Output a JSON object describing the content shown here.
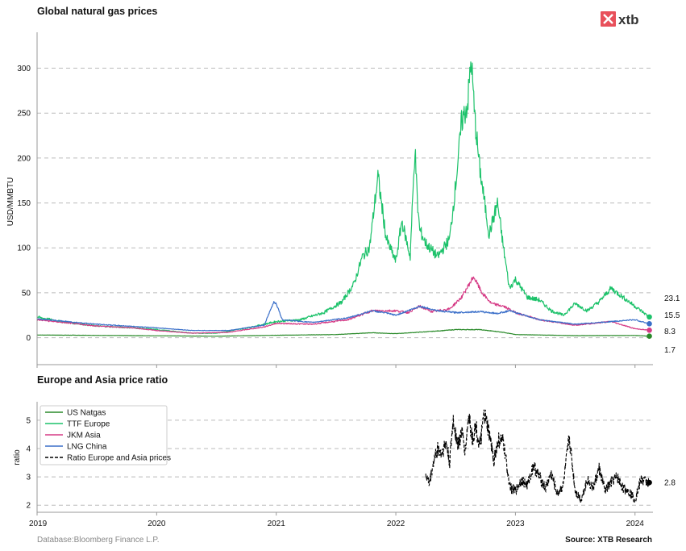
{
  "logo": {
    "text": "xtb",
    "color": "#e8505b"
  },
  "footer": {
    "left": "Database:Bloomberg Finance L.P.",
    "right": "Source: XTB Research"
  },
  "colors": {
    "us": "#2a8a2a",
    "ttf": "#1cc26a",
    "jkm": "#d63b86",
    "lng": "#3a6fc9",
    "ratio": "#000000"
  },
  "chart_data": [
    {
      "type": "line",
      "title": "Global natural gas prices",
      "ylabel": "USD/MMBTU",
      "ylim": [
        -30,
        340
      ],
      "yticks": [
        0,
        50,
        100,
        150,
        200,
        250,
        300
      ],
      "xlim": [
        2019.0,
        2024.15
      ],
      "grid": true,
      "end_labels": [
        "23.1",
        "15.5",
        "8.3",
        "1.7"
      ],
      "series": [
        {
          "key": "us",
          "x": [
            2019.0,
            2019.5,
            2020.0,
            2020.5,
            2021.0,
            2021.5,
            2021.8,
            2022.0,
            2022.3,
            2022.5,
            2022.7,
            2022.9,
            2023.0,
            2023.5,
            2024.0,
            2024.12
          ],
          "y": [
            3,
            2.6,
            2.1,
            1.7,
            2.7,
            3.5,
            5.5,
            4.5,
            7,
            9,
            9,
            6,
            3.5,
            2.3,
            2.5,
            1.7
          ]
        },
        {
          "key": "ttf",
          "x": [
            2019.0,
            2019.2,
            2019.5,
            2019.8,
            2020.0,
            2020.3,
            2020.5,
            2020.8,
            2021.0,
            2021.2,
            2021.4,
            2021.55,
            2021.65,
            2021.72,
            2021.78,
            2021.85,
            2021.92,
            2022.0,
            2022.05,
            2022.12,
            2022.16,
            2022.18,
            2022.2,
            2022.25,
            2022.35,
            2022.45,
            2022.5,
            2022.55,
            2022.6,
            2022.63,
            2022.66,
            2022.7,
            2022.78,
            2022.85,
            2022.9,
            2022.95,
            2023.0,
            2023.1,
            2023.2,
            2023.3,
            2023.4,
            2023.5,
            2023.6,
            2023.7,
            2023.8,
            2023.9,
            2024.0,
            2024.12
          ],
          "y": [
            23,
            18,
            13,
            11,
            9,
            5,
            5,
            12,
            18,
            20,
            28,
            40,
            60,
            90,
            100,
            180,
            110,
            85,
            130,
            90,
            212,
            150,
            120,
            105,
            90,
            110,
            170,
            240,
            260,
            310,
            245,
            190,
            115,
            150,
            100,
            55,
            65,
            45,
            42,
            30,
            25,
            38,
            30,
            40,
            55,
            45,
            35,
            23.1
          ]
        },
        {
          "key": "jkm",
          "x": [
            2019.0,
            2019.5,
            2019.8,
            2020.0,
            2020.3,
            2020.6,
            2020.9,
            2021.0,
            2021.3,
            2021.6,
            2021.8,
            2022.0,
            2022.1,
            2022.2,
            2022.3,
            2022.45,
            2022.55,
            2022.65,
            2022.72,
            2022.8,
            2022.9,
            2023.0,
            2023.2,
            2023.5,
            2023.8,
            2024.0,
            2024.12
          ],
          "y": [
            20,
            13,
            11,
            8,
            5,
            6,
            12,
            16,
            15,
            20,
            30,
            30,
            28,
            35,
            29,
            32,
            45,
            68,
            50,
            38,
            35,
            28,
            20,
            14,
            18,
            10,
            8.3
          ]
        },
        {
          "key": "lng",
          "x": [
            2019.0,
            2019.5,
            2020.0,
            2020.3,
            2020.6,
            2020.9,
            2020.98,
            2021.0,
            2021.05,
            2021.3,
            2021.6,
            2021.8,
            2021.9,
            2022.0,
            2022.1,
            2022.2,
            2022.35,
            2022.5,
            2022.7,
            2022.85,
            2022.95,
            2023.0,
            2023.2,
            2023.5,
            2023.8,
            2024.0,
            2024.12
          ],
          "y": [
            21,
            15,
            11,
            8,
            8,
            14,
            40,
            38,
            20,
            17,
            22,
            30,
            28,
            25,
            30,
            35,
            30,
            28,
            29,
            27,
            30,
            28,
            20,
            15,
            18,
            20,
            15.5
          ]
        }
      ]
    },
    {
      "type": "line",
      "title": "Europe and Asia price ratio",
      "ylabel": "ratio",
      "ylim": [
        1.75,
        5.65
      ],
      "yticks": [
        2,
        3,
        4,
        5
      ],
      "xlim": [
        2019.0,
        2024.15
      ],
      "xticks": [
        "2019",
        "2020",
        "2021",
        "2022",
        "2023",
        "2024"
      ],
      "grid": true,
      "end_label": "2.8",
      "legend": {
        "placement": "top-left",
        "entries": [
          "US Natgas",
          "TTF Europe",
          "JKM Asia",
          "LNG China",
          "Ratio Europe and Asia prices"
        ]
      },
      "series": [
        {
          "key": "ratio",
          "x": [
            2022.25,
            2022.28,
            2022.32,
            2022.35,
            2022.38,
            2022.42,
            2022.45,
            2022.48,
            2022.52,
            2022.55,
            2022.58,
            2022.61,
            2022.64,
            2022.67,
            2022.7,
            2022.74,
            2022.78,
            2022.82,
            2022.86,
            2022.9,
            2022.93,
            2022.96,
            2023.0,
            2023.05,
            2023.1,
            2023.15,
            2023.2,
            2023.25,
            2023.3,
            2023.35,
            2023.4,
            2023.45,
            2023.5,
            2023.55,
            2023.6,
            2023.65,
            2023.7,
            2023.75,
            2023.8,
            2023.85,
            2023.9,
            2023.95,
            2024.0,
            2024.05,
            2024.12
          ],
          "y": [
            3.1,
            2.75,
            3.6,
            4.0,
            3.8,
            4.2,
            3.5,
            5.0,
            4.1,
            4.6,
            3.9,
            5.2,
            4.3,
            4.8,
            4.0,
            5.2,
            4.5,
            3.6,
            4.3,
            4.2,
            3.3,
            2.6,
            2.5,
            2.9,
            2.7,
            3.4,
            3.0,
            2.6,
            3.1,
            2.4,
            2.7,
            4.4,
            2.5,
            2.2,
            2.9,
            2.6,
            3.3,
            2.5,
            2.8,
            3.0,
            2.6,
            2.5,
            2.2,
            2.9,
            2.8
          ]
        }
      ]
    }
  ]
}
